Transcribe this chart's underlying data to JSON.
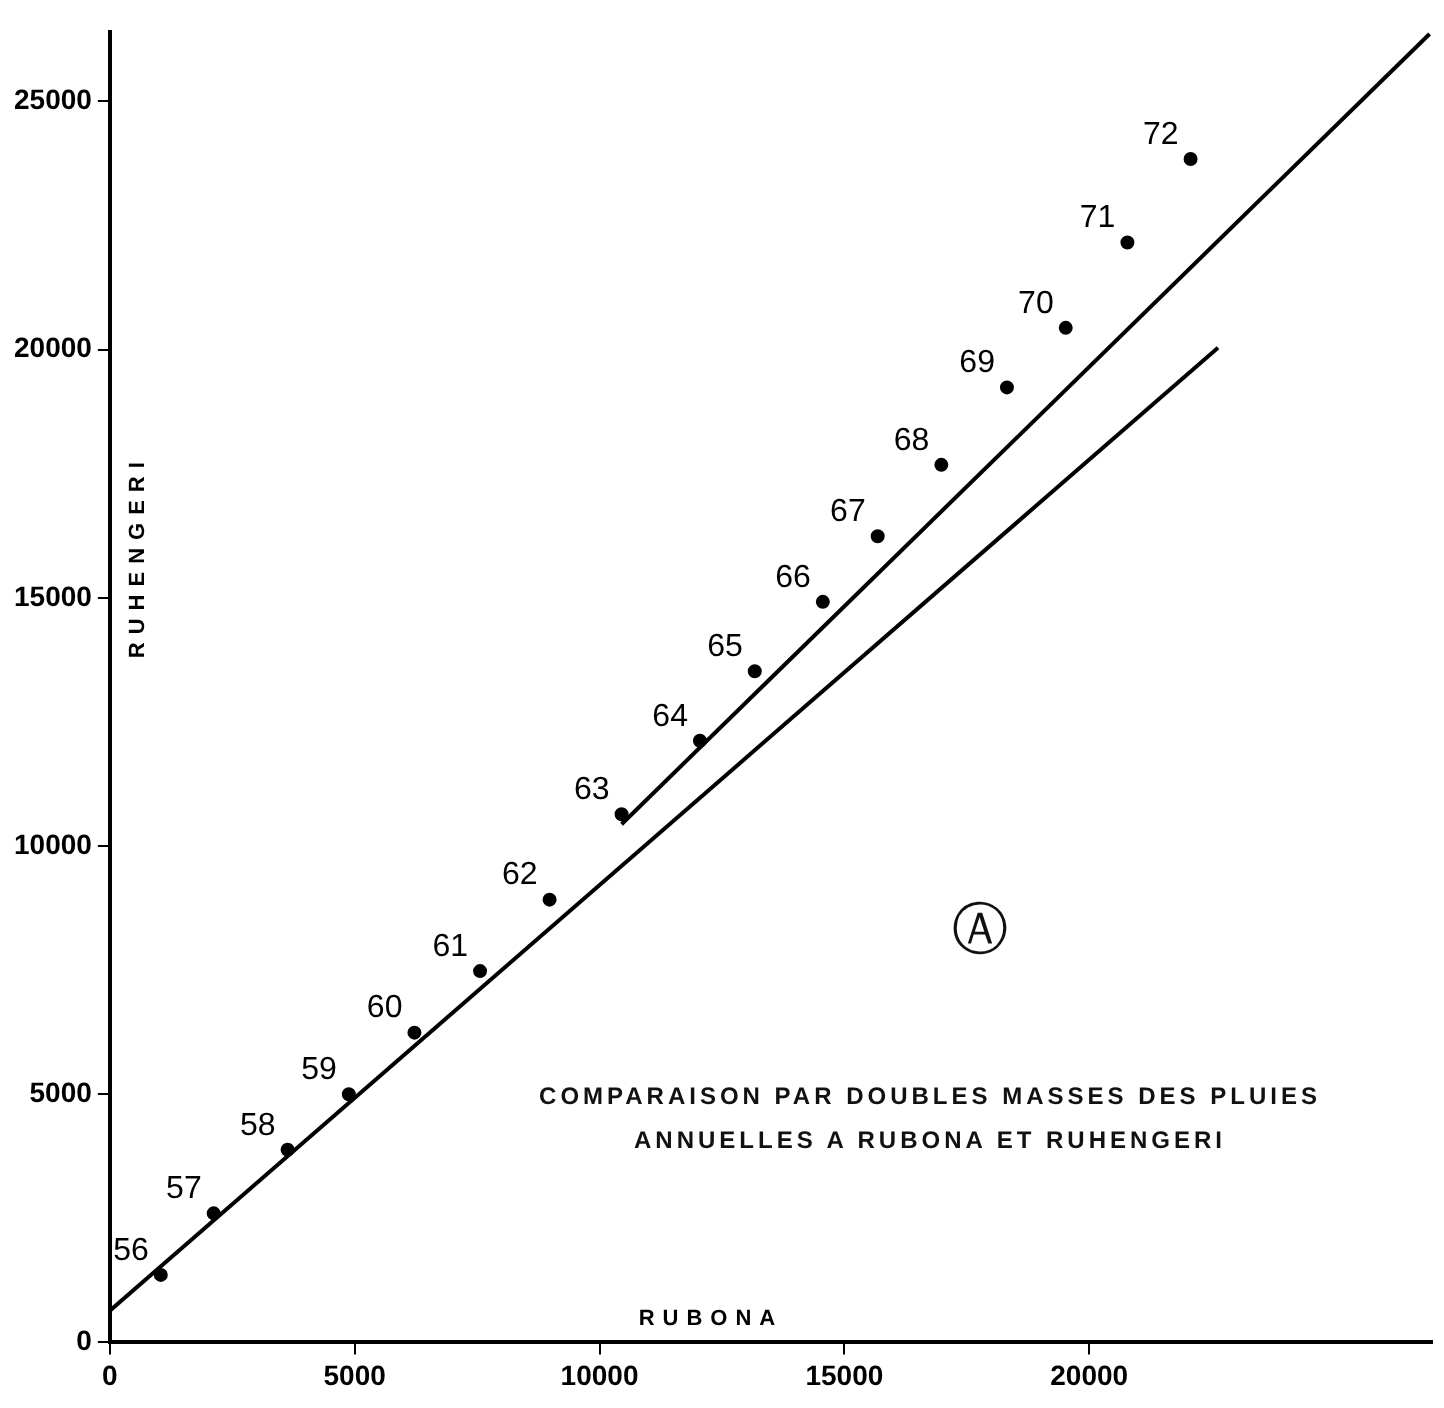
{
  "chart_data": {
    "type": "scatter",
    "xlabel": "RUBONA",
    "ylabel": "RUHENGERI",
    "xlim": [
      0,
      27000
    ],
    "ylim": [
      0,
      26400
    ],
    "xticks": [
      0,
      5000,
      10000,
      15000,
      20000
    ],
    "yticks": [
      0,
      5000,
      10000,
      15000,
      20000,
      25000
    ],
    "legend": false,
    "series": [
      {
        "marker": "circle",
        "color": "#000000",
        "x": [
          1040,
          2120,
          3630,
          4880,
          6220,
          7560,
          8980,
          10450,
          12050,
          13170,
          14560,
          15680,
          16980,
          18320,
          19520,
          20780,
          22070
        ],
        "values": [
          1360,
          2600,
          3880,
          5000,
          6240,
          7480,
          8920,
          10640,
          12120,
          13520,
          14920,
          16240,
          17680,
          19240,
          20440,
          22160,
          23840
        ]
      },
      {
        "type": "line",
        "color": "#000000",
        "x": [
          0,
          22630
        ],
        "values": [
          640,
          20040
        ]
      },
      {
        "type": "line",
        "color": "#000000",
        "x": [
          10450,
          26950
        ],
        "values": [
          10440,
          26360
        ]
      }
    ],
    "annotations": [
      {
        "text": "56",
        "x": 1040,
        "y": 1360
      },
      {
        "text": "57",
        "x": 2120,
        "y": 2600
      },
      {
        "text": "58",
        "x": 3630,
        "y": 3880
      },
      {
        "text": "59",
        "x": 4880,
        "y": 5000
      },
      {
        "text": "60",
        "x": 6220,
        "y": 6240
      },
      {
        "text": "61",
        "x": 7560,
        "y": 7480
      },
      {
        "text": "62",
        "x": 8980,
        "y": 8920
      },
      {
        "text": "63",
        "x": 10450,
        "y": 10640
      },
      {
        "text": "64",
        "x": 12050,
        "y": 12120
      },
      {
        "text": "65",
        "x": 13170,
        "y": 13520
      },
      {
        "text": "66",
        "x": 14560,
        "y": 14920
      },
      {
        "text": "67",
        "x": 15680,
        "y": 16240
      },
      {
        "text": "68",
        "x": 16980,
        "y": 17680
      },
      {
        "text": "69",
        "x": 18320,
        "y": 19240
      },
      {
        "text": "70",
        "x": 19520,
        "y": 20440
      },
      {
        "text": "71",
        "x": 20780,
        "y": 22160
      },
      {
        "text": "72",
        "x": 22070,
        "y": 23840
      },
      "Ⓐ",
      "COMPARAISON PAR DOUBLES MASSES DES PLUIES ANNUELLES A RUBONA ET RUHENGERI"
    ]
  }
}
